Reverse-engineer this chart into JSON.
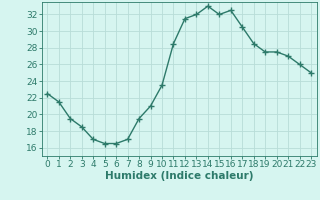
{
  "x": [
    0,
    1,
    2,
    3,
    4,
    5,
    6,
    7,
    8,
    9,
    10,
    11,
    12,
    13,
    14,
    15,
    16,
    17,
    18,
    19,
    20,
    21,
    22,
    23
  ],
  "y": [
    22.5,
    21.5,
    19.5,
    18.5,
    17.0,
    16.5,
    16.5,
    17.0,
    19.5,
    21.0,
    23.5,
    28.5,
    31.5,
    32.0,
    33.0,
    32.0,
    32.5,
    30.5,
    28.5,
    27.5,
    27.5,
    27.0,
    26.0,
    25.0
  ],
  "line_color": "#2d7a6a",
  "marker": "+",
  "marker_size": 4,
  "bg_color": "#d6f5f0",
  "grid_color": "#b8ddd8",
  "xlabel": "Humidex (Indice chaleur)",
  "xlim": [
    -0.5,
    23.5
  ],
  "ylim": [
    15.0,
    33.5
  ],
  "yticks": [
    16,
    18,
    20,
    22,
    24,
    26,
    28,
    30,
    32
  ],
  "xticks": [
    0,
    1,
    2,
    3,
    4,
    5,
    6,
    7,
    8,
    9,
    10,
    11,
    12,
    13,
    14,
    15,
    16,
    17,
    18,
    19,
    20,
    21,
    22,
    23
  ],
  "xlabel_fontsize": 7.5,
  "tick_fontsize": 6.5,
  "line_width": 1.0,
  "marker_linewidth": 1.0
}
